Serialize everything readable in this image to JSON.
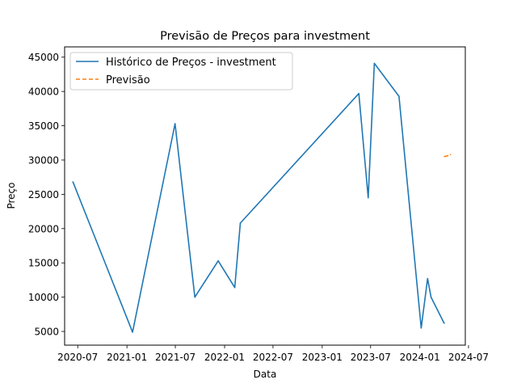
{
  "chart_data": {
    "type": "line",
    "title": "Previsão de Preços para investment",
    "xlabel": "Data",
    "ylabel": "Preço",
    "ylim": [
      3000,
      46500
    ],
    "xlim": [
      "2020-05-13",
      "2024-06-19"
    ],
    "x_ticks": [
      {
        "date": "2020-07-01",
        "label": "2020-07"
      },
      {
        "date": "2021-01-01",
        "label": "2021-01"
      },
      {
        "date": "2021-07-01",
        "label": "2021-07"
      },
      {
        "date": "2022-01-01",
        "label": "2022-01"
      },
      {
        "date": "2022-07-01",
        "label": "2022-07"
      },
      {
        "date": "2023-01-01",
        "label": "2023-01"
      },
      {
        "date": "2023-07-01",
        "label": "2023-07"
      },
      {
        "date": "2024-01-01",
        "label": "2024-01"
      },
      {
        "date": "2024-07-01",
        "label": "2024-07"
      }
    ],
    "y_ticks": [
      5000,
      10000,
      15000,
      20000,
      25000,
      30000,
      35000,
      40000,
      45000
    ],
    "legend_position": "top-left",
    "grid": false,
    "series": [
      {
        "name": "Histórico de Preços - investment",
        "color": "#1f77b4",
        "style": "solid",
        "points": [
          {
            "x": "2020-06-13",
            "y": 26800
          },
          {
            "x": "2021-01-22",
            "y": 4900
          },
          {
            "x": "2021-06-30",
            "y": 35300
          },
          {
            "x": "2021-09-12",
            "y": 10000
          },
          {
            "x": "2021-12-08",
            "y": 15300
          },
          {
            "x": "2022-02-08",
            "y": 11400
          },
          {
            "x": "2022-03-01",
            "y": 20800
          },
          {
            "x": "2023-05-18",
            "y": 39700
          },
          {
            "x": "2023-06-22",
            "y": 24500
          },
          {
            "x": "2023-07-15",
            "y": 44100
          },
          {
            "x": "2023-10-15",
            "y": 39300
          },
          {
            "x": "2024-01-06",
            "y": 5500
          },
          {
            "x": "2024-01-30",
            "y": 12700
          },
          {
            "x": "2024-02-12",
            "y": 10000
          },
          {
            "x": "2024-04-01",
            "y": 6200
          }
        ]
      },
      {
        "name": "Previsão",
        "color": "#ff7f0e",
        "style": "dashed",
        "points": [
          {
            "x": "2024-04-02",
            "y": 30500
          },
          {
            "x": "2024-04-12",
            "y": 30600
          },
          {
            "x": "2024-04-25",
            "y": 30800
          }
        ]
      }
    ]
  }
}
